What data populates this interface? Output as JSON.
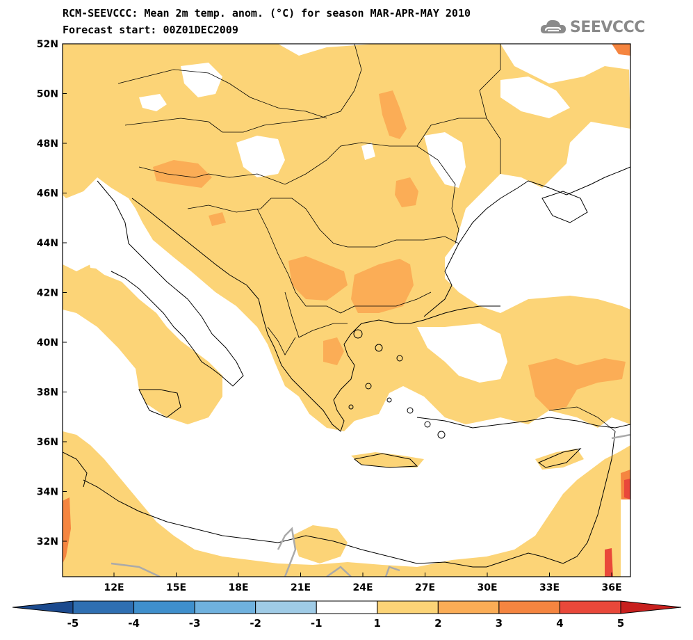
{
  "title": {
    "line1": "RCM-SEEVCCC: Mean 2m temp. anom. (°C) for season MAR-APR-MAY 2010",
    "line2": "Forecast start: 00Z01DEC2009"
  },
  "logo": {
    "text": "SEEVCCC",
    "icon": "cloud-icon"
  },
  "map": {
    "lat_labels": [
      "52N",
      "50N",
      "48N",
      "46N",
      "44N",
      "42N",
      "40N",
      "38N",
      "36N",
      "34N",
      "32N"
    ],
    "lon_labels": [
      "12E",
      "15E",
      "18E",
      "21E",
      "24E",
      "27E",
      "30E",
      "33E",
      "36E"
    ],
    "shading_colors": {
      "1-2": "#fcd477",
      "2-3": "#fbad56",
      "3-4": "#f58540",
      "4-5": "#e9483a"
    }
  },
  "colorbar": {
    "labels": [
      "-5",
      "-4",
      "-3",
      "-2",
      "-1",
      "1",
      "2",
      "3",
      "4",
      "5"
    ],
    "colors": [
      "#1b4a8e",
      "#2f6fb2",
      "#3f8fcc",
      "#6fb1de",
      "#9fcbe6",
      "#ffffff",
      "#fcd477",
      "#fbad56",
      "#f58540",
      "#e9483a",
      "#c8201e"
    ]
  }
}
